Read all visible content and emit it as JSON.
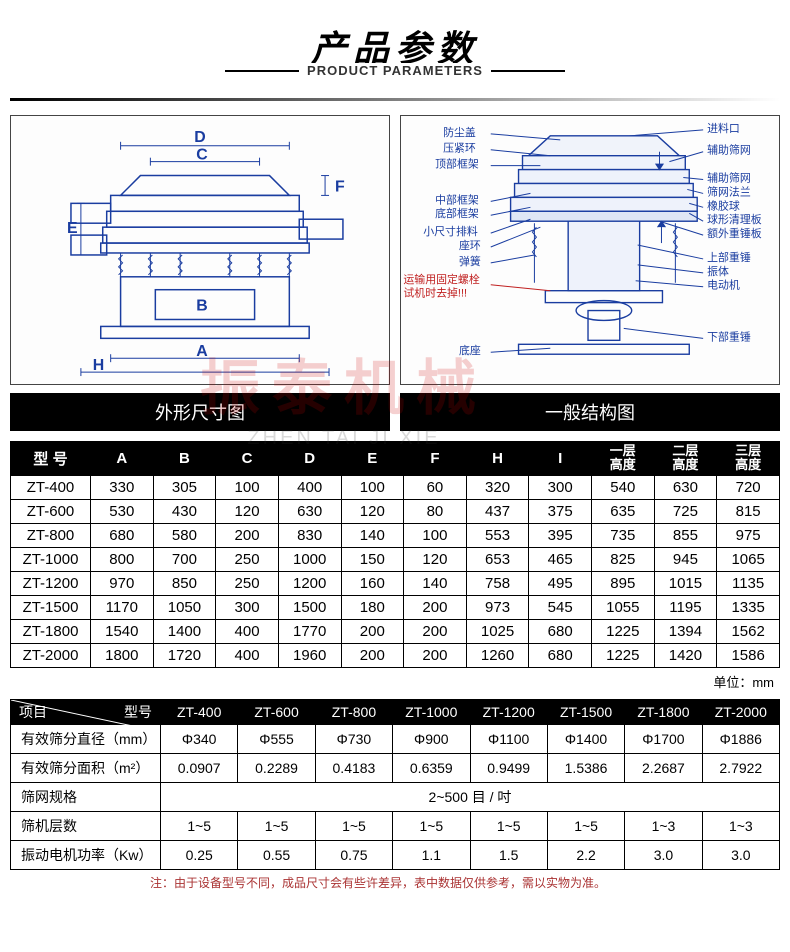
{
  "title": {
    "cn": "产品参数",
    "en": "PRODUCT PARAMETERS"
  },
  "captions": {
    "left": "外形尺寸图",
    "right": "一般结构图"
  },
  "diagram_left": {
    "labels": {
      "A": "A",
      "B": "B",
      "C": "C",
      "D": "D",
      "E": "E",
      "F": "F",
      "H": "H"
    },
    "stroke": "#1a3da0",
    "bg": "#ffffff"
  },
  "diagram_right": {
    "left_labels": [
      "防尘盖",
      "压紧环",
      "顶部框架",
      "中部框架",
      "底部框架",
      "小尺寸排料",
      "座环",
      "弹簧",
      "运输用固定螺栓",
      "试机时去掉!!!",
      "底座"
    ],
    "right_labels": [
      "进料口",
      "辅助筛网",
      "辅助筛网",
      "筛网法兰",
      "橡胶球",
      "球形清理板",
      "额外重锤板",
      "上部重锤",
      "振体",
      "电动机",
      "下部重锤"
    ],
    "stroke": "#1a3da0",
    "accent": "#c02020"
  },
  "table1": {
    "headers": [
      "型 号",
      "A",
      "B",
      "C",
      "D",
      "E",
      "F",
      "H",
      "I",
      "一层\n高度",
      "二层\n高度",
      "三层\n高度"
    ],
    "rows": [
      [
        "ZT-400",
        "330",
        "305",
        "100",
        "400",
        "100",
        "60",
        "320",
        "300",
        "540",
        "630",
        "720"
      ],
      [
        "ZT-600",
        "530",
        "430",
        "120",
        "630",
        "120",
        "80",
        "437",
        "375",
        "635",
        "725",
        "815"
      ],
      [
        "ZT-800",
        "680",
        "580",
        "200",
        "830",
        "140",
        "100",
        "553",
        "395",
        "735",
        "855",
        "975"
      ],
      [
        "ZT-1000",
        "800",
        "700",
        "250",
        "1000",
        "150",
        "120",
        "653",
        "465",
        "825",
        "945",
        "1065"
      ],
      [
        "ZT-1200",
        "970",
        "850",
        "250",
        "1200",
        "160",
        "140",
        "758",
        "495",
        "895",
        "1015",
        "1135"
      ],
      [
        "ZT-1500",
        "1170",
        "1050",
        "300",
        "1500",
        "180",
        "200",
        "973",
        "545",
        "1055",
        "1195",
        "1335"
      ],
      [
        "ZT-1800",
        "1540",
        "1400",
        "400",
        "1770",
        "200",
        "200",
        "1025",
        "680",
        "1225",
        "1394",
        "1562"
      ],
      [
        "ZT-2000",
        "1800",
        "1720",
        "400",
        "1960",
        "200",
        "200",
        "1260",
        "680",
        "1225",
        "1420",
        "1586"
      ]
    ],
    "unit_note": "单位：mm"
  },
  "table2": {
    "diag_labels": {
      "top": "型号",
      "bottom": "项目"
    },
    "model_cols": [
      "ZT-400",
      "ZT-600",
      "ZT-800",
      "ZT-1000",
      "ZT-1200",
      "ZT-1500",
      "ZT-1800",
      "ZT-2000"
    ],
    "rows": [
      {
        "label": "有效筛分直径（mm）",
        "cells": [
          "Φ340",
          "Φ555",
          "Φ730",
          "Φ900",
          "Φ1100",
          "Φ1400",
          "Φ1700",
          "Φ1886"
        ]
      },
      {
        "label": "有效筛分面积（m²）",
        "cells": [
          "0.0907",
          "0.2289",
          "0.4183",
          "0.6359",
          "0.9499",
          "1.5386",
          "2.2687",
          "2.7922"
        ]
      },
      {
        "label": "筛网规格",
        "span": true,
        "merged": "2~500 目 / 吋"
      },
      {
        "label": "筛机层数",
        "cells": [
          "1~5",
          "1~5",
          "1~5",
          "1~5",
          "1~5",
          "1~5",
          "1~3",
          "1~3"
        ]
      },
      {
        "label": "振动电机功率（Kw）",
        "cells": [
          "0.25",
          "0.55",
          "0.75",
          "1.1",
          "1.5",
          "2.2",
          "3.0",
          "3.0"
        ]
      }
    ]
  },
  "footnote": "注：由于设备型号不同，成品尺寸会有些许差异，表中数据仅供参考，需以实物为准。",
  "watermark": {
    "cn": "振泰机械",
    "en": "ZHEN  TAI  JI  XIE"
  },
  "colors": {
    "header_bg": "#000000",
    "header_fg": "#ffffff",
    "border": "#000000",
    "footnote": "#a03030"
  }
}
